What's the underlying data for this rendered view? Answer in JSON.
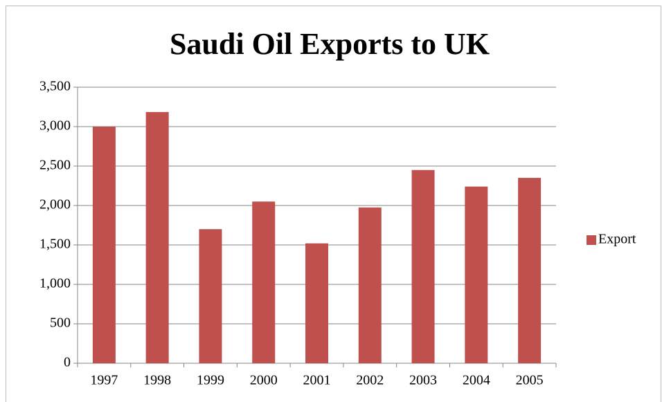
{
  "chart_data": {
    "type": "bar",
    "title": "Saudi Oil Exports to UK",
    "categories": [
      "1997",
      "1998",
      "1999",
      "2000",
      "2001",
      "2002",
      "2003",
      "2004",
      "2005"
    ],
    "series": [
      {
        "name": "Export",
        "color": "#c0504d",
        "values": [
          3000,
          3185,
          1700,
          2050,
          1520,
          1975,
          2450,
          2240,
          2350
        ]
      }
    ],
    "ylim": [
      0,
      3500
    ],
    "yticks": [
      0,
      500,
      {
        "value": 1000,
        "label": "1,000"
      },
      {
        "value": 1500,
        "label": "1,500"
      },
      {
        "value": 2000,
        "label": "2,000"
      },
      {
        "value": 2500,
        "label": "2,500"
      },
      {
        "value": 3000,
        "label": "3,000"
      },
      {
        "value": 3500,
        "label": "3,500"
      }
    ],
    "grid": true,
    "legend": "right"
  }
}
